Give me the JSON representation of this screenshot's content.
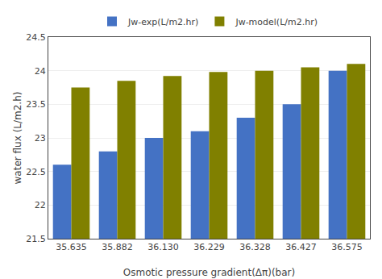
{
  "chart_data": {
    "type": "bar",
    "categories": [
      "35.635",
      "35.882",
      "36.130",
      "36.229",
      "36.328",
      "36.427",
      "36.575"
    ],
    "series": [
      {
        "name": "Jw-exp(L/m2.hr)",
        "color": "#4472C4",
        "values": [
          22.6,
          22.8,
          23.0,
          23.1,
          23.3,
          23.5,
          24.0
        ]
      },
      {
        "name": "Jw-model(L/m2.hr)",
        "color": "#808000",
        "values": [
          23.75,
          23.85,
          23.92,
          23.98,
          24.0,
          24.05,
          24.1
        ]
      }
    ],
    "xlabel": "Osmotic pressure gradient(Δπ)(bar)",
    "ylabel": "water flux (L/m2.h)",
    "ylim": [
      21.5,
      24.5
    ],
    "yticks": [
      21.5,
      22,
      22.5,
      23,
      23.5,
      24,
      24.5
    ],
    "grid": true,
    "legend": "upper center"
  }
}
